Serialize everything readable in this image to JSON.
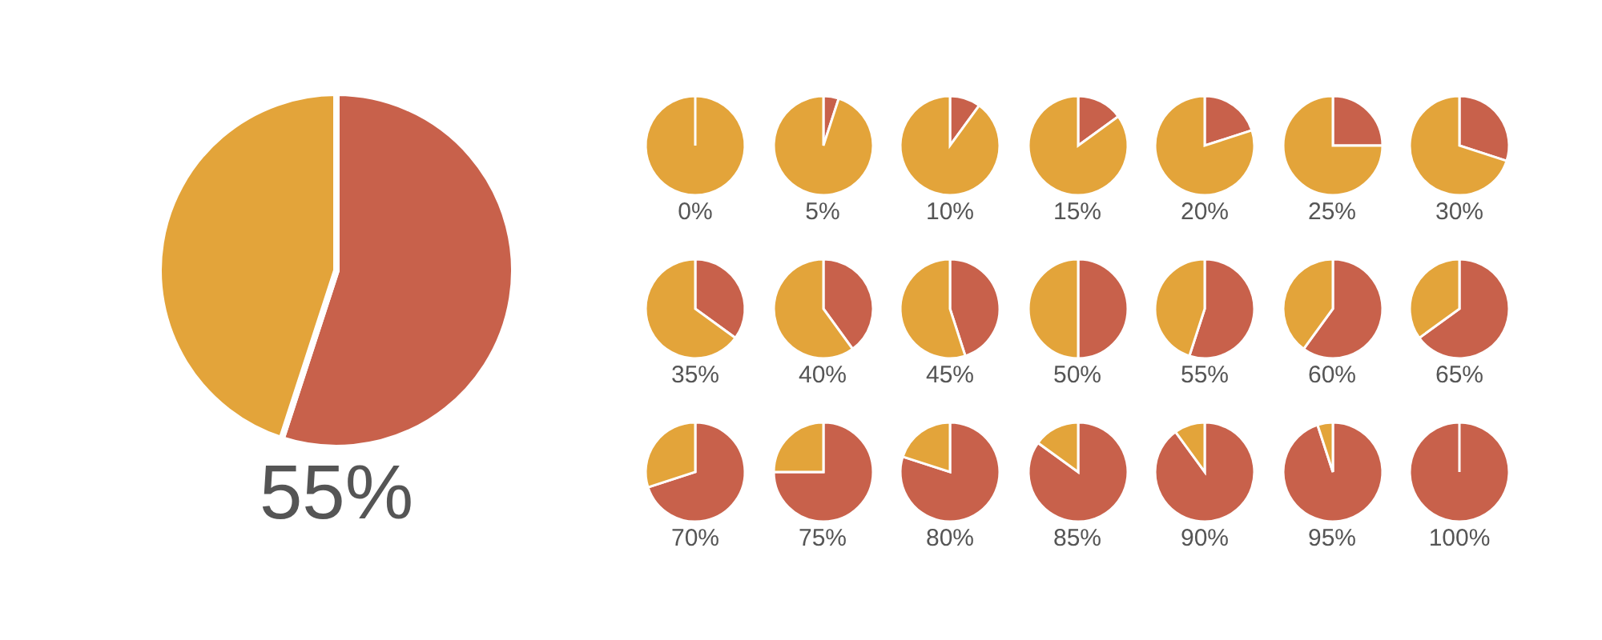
{
  "chart_data": [
    {
      "type": "pie",
      "title": "55%",
      "categories": [
        null,
        null
      ],
      "values": [
        55,
        45
      ],
      "colors": [
        "#c8614b",
        "#e3a43a"
      ]
    },
    {
      "type": "pie",
      "title": "0%",
      "categories": [
        null,
        null
      ],
      "values": [
        0,
        100
      ],
      "colors": [
        "#c8614b",
        "#e3a43a"
      ]
    },
    {
      "type": "pie",
      "title": "5%",
      "categories": [
        null,
        null
      ],
      "values": [
        5,
        95
      ],
      "colors": [
        "#c8614b",
        "#e3a43a"
      ]
    },
    {
      "type": "pie",
      "title": "10%",
      "categories": [
        null,
        null
      ],
      "values": [
        10,
        90
      ],
      "colors": [
        "#c8614b",
        "#e3a43a"
      ]
    },
    {
      "type": "pie",
      "title": "15%",
      "categories": [
        null,
        null
      ],
      "values": [
        15,
        85
      ],
      "colors": [
        "#c8614b",
        "#e3a43a"
      ]
    },
    {
      "type": "pie",
      "title": "20%",
      "categories": [
        null,
        null
      ],
      "values": [
        20,
        80
      ],
      "colors": [
        "#c8614b",
        "#e3a43a"
      ]
    },
    {
      "type": "pie",
      "title": "25%",
      "categories": [
        null,
        null
      ],
      "values": [
        25,
        75
      ],
      "colors": [
        "#c8614b",
        "#e3a43a"
      ]
    },
    {
      "type": "pie",
      "title": "30%",
      "categories": [
        null,
        null
      ],
      "values": [
        30,
        70
      ],
      "colors": [
        "#c8614b",
        "#e3a43a"
      ]
    },
    {
      "type": "pie",
      "title": "35%",
      "categories": [
        null,
        null
      ],
      "values": [
        35,
        65
      ],
      "colors": [
        "#c8614b",
        "#e3a43a"
      ]
    },
    {
      "type": "pie",
      "title": "40%",
      "categories": [
        null,
        null
      ],
      "values": [
        40,
        60
      ],
      "colors": [
        "#c8614b",
        "#e3a43a"
      ]
    },
    {
      "type": "pie",
      "title": "45%",
      "categories": [
        null,
        null
      ],
      "values": [
        45,
        55
      ],
      "colors": [
        "#c8614b",
        "#e3a43a"
      ]
    },
    {
      "type": "pie",
      "title": "50%",
      "categories": [
        null,
        null
      ],
      "values": [
        50,
        50
      ],
      "colors": [
        "#c8614b",
        "#e3a43a"
      ]
    },
    {
      "type": "pie",
      "title": "55%",
      "categories": [
        null,
        null
      ],
      "values": [
        55,
        45
      ],
      "colors": [
        "#c8614b",
        "#e3a43a"
      ]
    },
    {
      "type": "pie",
      "title": "60%",
      "categories": [
        null,
        null
      ],
      "values": [
        60,
        40
      ],
      "colors": [
        "#c8614b",
        "#e3a43a"
      ]
    },
    {
      "type": "pie",
      "title": "65%",
      "categories": [
        null,
        null
      ],
      "values": [
        65,
        35
      ],
      "colors": [
        "#c8614b",
        "#e3a43a"
      ]
    },
    {
      "type": "pie",
      "title": "70%",
      "categories": [
        null,
        null
      ],
      "values": [
        70,
        30
      ],
      "colors": [
        "#c8614b",
        "#e3a43a"
      ]
    },
    {
      "type": "pie",
      "title": "75%",
      "categories": [
        null,
        null
      ],
      "values": [
        75,
        25
      ],
      "colors": [
        "#c8614b",
        "#e3a43a"
      ]
    },
    {
      "type": "pie",
      "title": "80%",
      "categories": [
        null,
        null
      ],
      "values": [
        80,
        20
      ],
      "colors": [
        "#c8614b",
        "#e3a43a"
      ]
    },
    {
      "type": "pie",
      "title": "85%",
      "categories": [
        null,
        null
      ],
      "values": [
        85,
        15
      ],
      "colors": [
        "#c8614b",
        "#e3a43a"
      ]
    },
    {
      "type": "pie",
      "title": "90%",
      "categories": [
        null,
        null
      ],
      "values": [
        90,
        10
      ],
      "colors": [
        "#c8614b",
        "#e3a43a"
      ]
    },
    {
      "type": "pie",
      "title": "95%",
      "categories": [
        null,
        null
      ],
      "values": [
        95,
        5
      ],
      "colors": [
        "#c8614b",
        "#e3a43a"
      ]
    },
    {
      "type": "pie",
      "title": "100%",
      "categories": [
        null,
        null
      ],
      "values": [
        100,
        0
      ],
      "colors": [
        "#c8614b",
        "#e3a43a"
      ]
    }
  ]
}
